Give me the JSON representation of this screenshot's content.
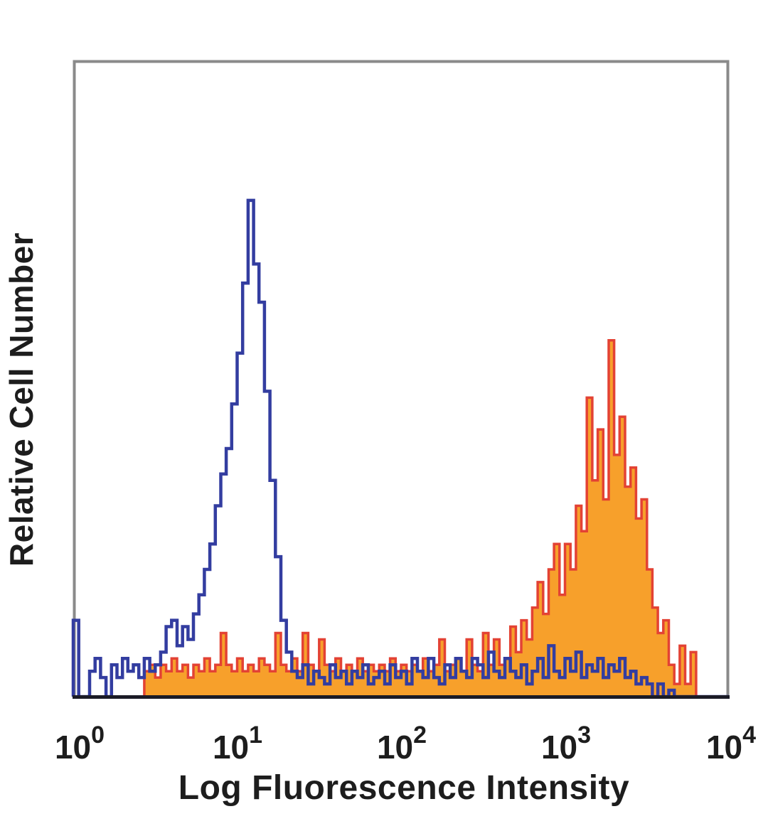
{
  "figure": {
    "background": "#ffffff"
  },
  "chart_data": {
    "type": "histogram",
    "subtype": "flow-cytometry-overlay",
    "title": "",
    "xlabel": "Log Fluorescence Intensity",
    "ylabel": "Relative Cell Number",
    "x_scale": "log10",
    "x_range": [
      1,
      10000
    ],
    "x_ticks": [
      {
        "base": "10",
        "exp": "0",
        "value": 1
      },
      {
        "base": "10",
        "exp": "1",
        "value": 10
      },
      {
        "base": "10",
        "exp": "2",
        "value": 100
      },
      {
        "base": "10",
        "exp": "3",
        "value": 1000
      },
      {
        "base": "10",
        "exp": "4",
        "value": 10000
      }
    ],
    "y_axis": {
      "ticks": "none",
      "units": "relative cell number (unlabeled axis)"
    },
    "grid": false,
    "legend": "none",
    "bins_per_decade": 30,
    "bin_unit": "percent of plot height",
    "frame_color": "#8A8A8A",
    "axis_color": "#1B1B26",
    "text_color": "#1D1D1D",
    "series": [
      {
        "name": "filled orange histogram (right peak)",
        "style": "filled",
        "line_color": "#E34234",
        "fill": "#F7A02B",
        "peak_x_approx": 1900,
        "peak_log10": 3.28,
        "peak_height_pct": 56,
        "bins": [
          0,
          0,
          0,
          0,
          0,
          0,
          0,
          0,
          0,
          0,
          0,
          0,
          0,
          4,
          5,
          3,
          5,
          4,
          6,
          4,
          5,
          3,
          5,
          4,
          6,
          4,
          5,
          10,
          5,
          4,
          6,
          4,
          5,
          4,
          6,
          5,
          4,
          10,
          5,
          4,
          6,
          4,
          10,
          5,
          4,
          9,
          5,
          4,
          6,
          4,
          5,
          4,
          6,
          4,
          5,
          4,
          5,
          4,
          6,
          4,
          5,
          4,
          5,
          4,
          6,
          4,
          5,
          9,
          4,
          5,
          6,
          4,
          9,
          5,
          4,
          10,
          5,
          9,
          5,
          6,
          11,
          7,
          12,
          9,
          14,
          18,
          13,
          20,
          24,
          16,
          24,
          20,
          30,
          26,
          47,
          34,
          42,
          31,
          56,
          38,
          44,
          33,
          36,
          28,
          31,
          20,
          14,
          10,
          12,
          5,
          2,
          8,
          2,
          7,
          0,
          0,
          0,
          0,
          0,
          0
        ]
      },
      {
        "name": "open blue histogram (left peak)",
        "style": "open",
        "line_color": "#333DA0",
        "fill": "none",
        "peak_x_approx": 12,
        "peak_log10": 1.08,
        "peak_height_pct": 78,
        "bins": [
          12,
          0,
          0,
          4,
          6,
          3,
          0,
          5,
          3,
          6,
          4,
          5,
          3,
          6,
          4,
          5,
          7,
          11,
          12,
          8,
          11,
          9,
          13,
          16,
          20,
          24,
          30,
          35,
          39,
          46,
          54,
          65,
          78,
          68,
          62,
          48,
          34,
          22,
          12,
          7,
          4,
          3,
          5,
          2,
          4,
          3,
          2,
          5,
          3,
          4,
          2,
          4,
          3,
          5,
          2,
          3,
          4,
          2,
          5,
          3,
          4,
          2,
          6,
          4,
          3,
          6,
          3,
          2,
          5,
          3,
          6,
          4,
          3,
          6,
          5,
          3,
          7,
          4,
          3,
          6,
          4,
          3,
          5,
          2,
          4,
          6,
          3,
          8,
          4,
          3,
          6,
          4,
          7,
          3,
          5,
          4,
          6,
          3,
          5,
          4,
          6,
          3,
          4,
          2,
          3,
          2,
          0,
          2,
          0,
          1,
          0,
          0,
          0,
          0,
          0,
          0,
          0,
          0,
          0,
          0
        ]
      }
    ]
  }
}
